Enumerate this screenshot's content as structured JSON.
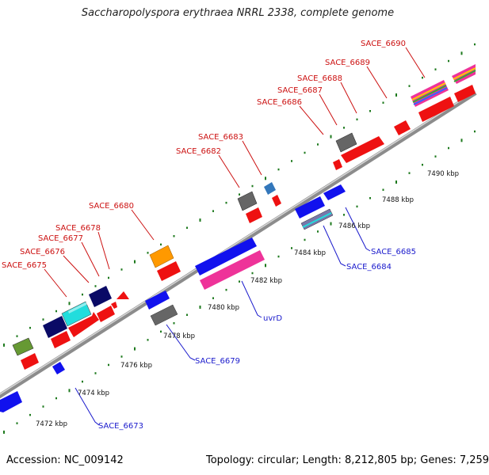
{
  "title": "Saccharopolyspora erythraea NRRL 2338, complete genome",
  "footer": {
    "accession": "Accession: NC_009142",
    "topology": "Topology: circular; Length: 8,212,805 bp; Genes: 7,259"
  },
  "colors": {
    "backbone": "#8c8c8c",
    "dots": "#1e7a1e",
    "forward_label": "#cc1111",
    "reverse_label": "#1a1acc",
    "forward_cds": "#ee1111",
    "reverse_cds": "#1111ee",
    "magenta": "#ee3399",
    "orange": "#ff9900",
    "cyan": "#22dddd",
    "navy": "#0a0a66",
    "gray": "#666666",
    "olive": "#669933",
    "steelblue": "#3377bb"
  },
  "position_ticks": [
    "7472 kbp",
    "7474 kbp",
    "7476 kbp",
    "7478 kbp",
    "7480 kbp",
    "7482 kbp",
    "7484 kbp",
    "7486 kbp",
    "7488 kbp",
    "7490 kbp"
  ],
  "forward_labels": [
    "SACE_6675",
    "SACE_6676",
    "SACE_6677",
    "SACE_6678",
    "SACE_6680",
    "SACE_6682",
    "SACE_6683",
    "SACE_6686",
    "SACE_6687",
    "SACE_6688",
    "SACE_6689",
    "SACE_6690"
  ],
  "reverse_labels": [
    "SACE_6673",
    "SACE_6679",
    "uvrD",
    "SACE_6684",
    "SACE_6685"
  ]
}
